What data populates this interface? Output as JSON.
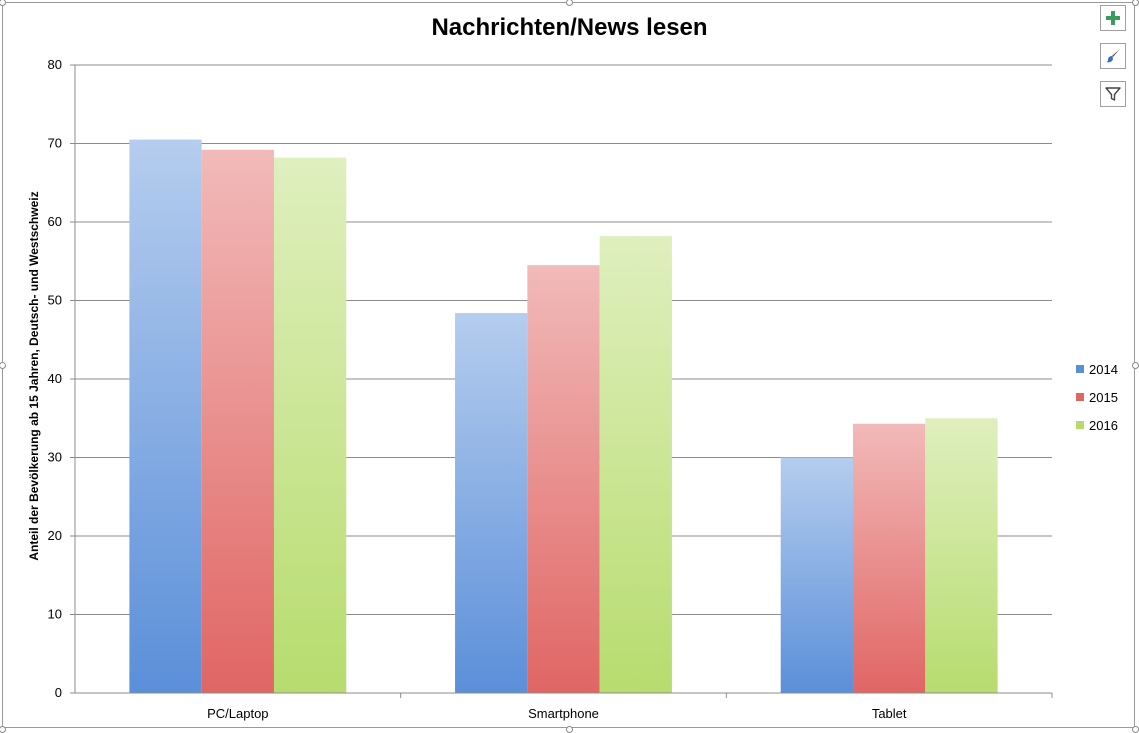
{
  "chart_data": {
    "type": "bar",
    "title": "Nachrichten/News lesen",
    "xlabel": "",
    "ylabel": "Anteil der Bevölkerung ab 15 Jahren, Deutsch- und Westschweiz",
    "categories": [
      "PC/Laptop",
      "Smartphone",
      "Tablet"
    ],
    "series": [
      {
        "name": "2014",
        "values": [
          70.5,
          48.4,
          30.0
        ],
        "color": "#5b8fd9"
      },
      {
        "name": "2015",
        "values": [
          69.2,
          54.5,
          34.3
        ],
        "color": "#e06664"
      },
      {
        "name": "2016",
        "values": [
          68.2,
          58.2,
          35.0
        ],
        "color": "#b7dc6e"
      }
    ],
    "ylim": [
      0,
      80
    ],
    "yticks": [
      0,
      10,
      20,
      30,
      40,
      50,
      60,
      70,
      80
    ],
    "grid": true,
    "legend_position": "right"
  },
  "toolbar": {
    "icons": [
      "add-chart-element-icon",
      "chart-styles-brush-icon",
      "chart-filter-icon"
    ]
  }
}
